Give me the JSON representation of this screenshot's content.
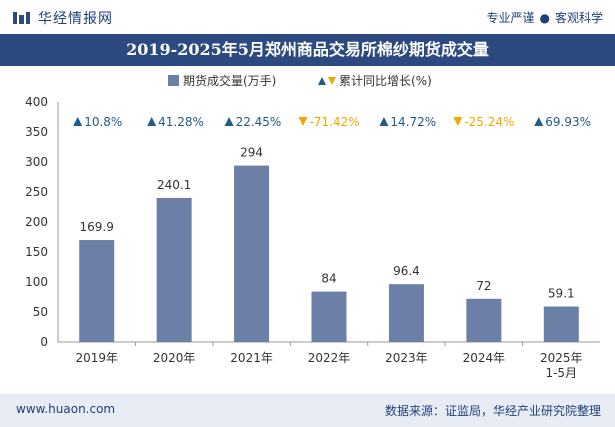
{
  "header": {
    "brand": "华经情报网",
    "slogan_left": "专业严谨",
    "slogan_right": "客观科学"
  },
  "footer": {
    "website": "www.huaon.com",
    "source": "数据来源：证监局，华经产业研究院整理"
  },
  "colors": {
    "bar": "#6c7fa6",
    "title_bg": "#2c4a80",
    "growth_up": "#1f5a8a",
    "growth_down": "#f0a800"
  },
  "chart_data": {
    "type": "bar",
    "title": "2019-2025年5月郑州商品交易所棉纱期货成交量",
    "legend": {
      "bar_label": "期货成交量(万手)",
      "growth_label": "累计同比增长(%)"
    },
    "categories": [
      "2019年",
      "2020年",
      "2021年",
      "2022年",
      "2023年",
      "2024年",
      "2025年\n1-5月"
    ],
    "series": [
      {
        "name": "期货成交量(万手)",
        "values": [
          169.9,
          240.1,
          294,
          84,
          96.4,
          72,
          59.1
        ]
      }
    ],
    "value_labels": [
      "169.9",
      "240.1",
      "294",
      "84",
      "96.4",
      "72",
      "59.1"
    ],
    "growth": [
      {
        "label": "10.8%",
        "dir": "up"
      },
      {
        "label": "41.28%",
        "dir": "up"
      },
      {
        "label": "22.45%",
        "dir": "up"
      },
      {
        "label": "-71.42%",
        "dir": "down"
      },
      {
        "label": "14.72%",
        "dir": "up"
      },
      {
        "label": "-25.24%",
        "dir": "down"
      },
      {
        "label": "69.93%",
        "dir": "up"
      }
    ],
    "ylim": [
      0,
      400
    ],
    "yticks": [
      0,
      50,
      100,
      150,
      200,
      250,
      300,
      350,
      400
    ],
    "xlabel": "",
    "ylabel": "",
    "grid": false
  }
}
